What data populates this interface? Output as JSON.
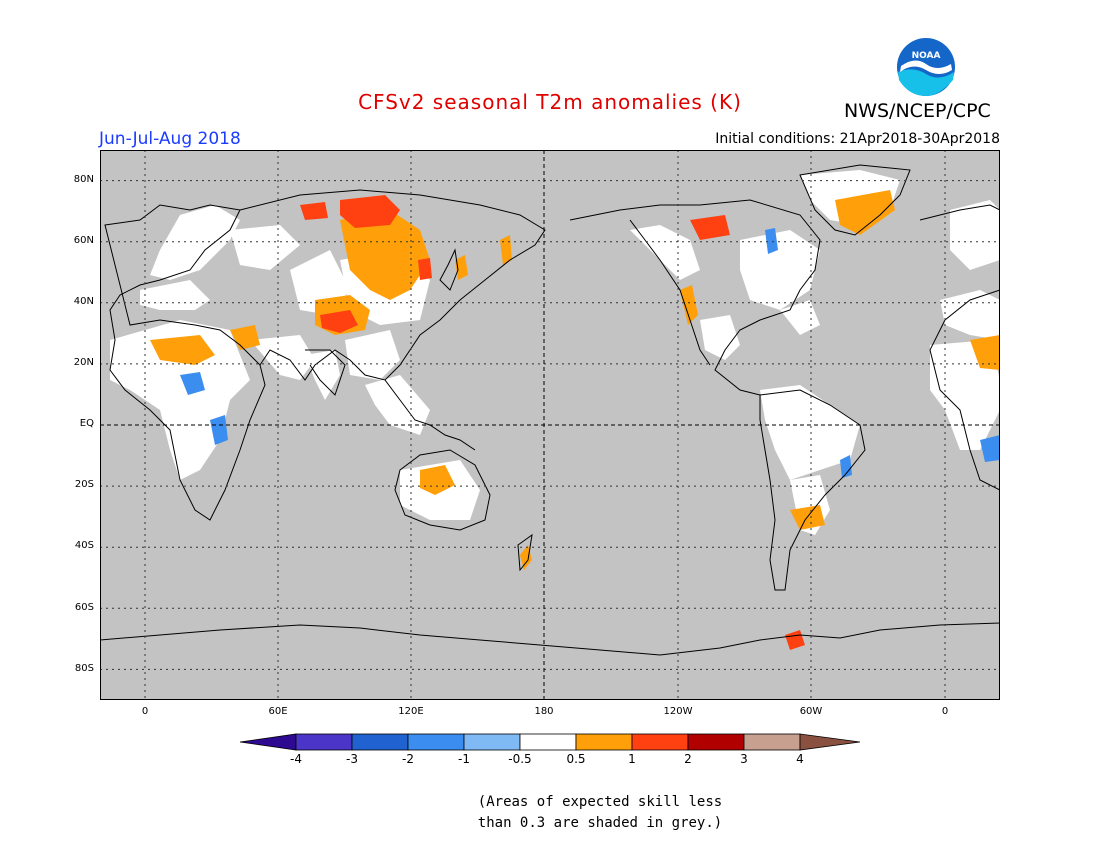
{
  "header": {
    "title": "CFSv2 seasonal T2m anomalies (K)",
    "agency": "NWS/NCEP/CPC",
    "season": "Jun-Jul-Aug 2018",
    "initial_conditions": "Initial conditions: 21Apr2018-30Apr2018",
    "logo_text": "NOAA"
  },
  "axes": {
    "lat_labels": [
      "80N",
      "60N",
      "40N",
      "20N",
      "EQ",
      "20S",
      "40S",
      "60S",
      "80S"
    ],
    "lon_labels": [
      "0",
      "60E",
      "120E",
      "180",
      "120W",
      "60W",
      "0"
    ]
  },
  "colorbar": {
    "labels": [
      "-4",
      "-3",
      "-2",
      "-1",
      "-0.5",
      "0.5",
      "1",
      "2",
      "3",
      "4"
    ],
    "colors": {
      "lt_-4": "#2d0a8f",
      "-4_-3": "#4a35c8",
      "-3_-2": "#1f62d0",
      "-2_-1": "#3b8ef0",
      "-1_-0.5": "#7fbaf5",
      "-0.5_0.5": "#ffffff",
      "0.5_1": "#ffa00a",
      "1_2": "#ff4010",
      "2_3": "#b00000",
      "3_4": "#c8a090",
      "gt_4": "#8a5040"
    }
  },
  "note": {
    "line1": "(Areas of expected skill less",
    "line2": "than 0.3 are shaded in grey.)"
  },
  "map_colors": {
    "grey": "#c3c3c3",
    "white": "#ffffff",
    "warm": "#ffa00a",
    "hot": "#ff4010",
    "cool": "#3b8ef0"
  }
}
